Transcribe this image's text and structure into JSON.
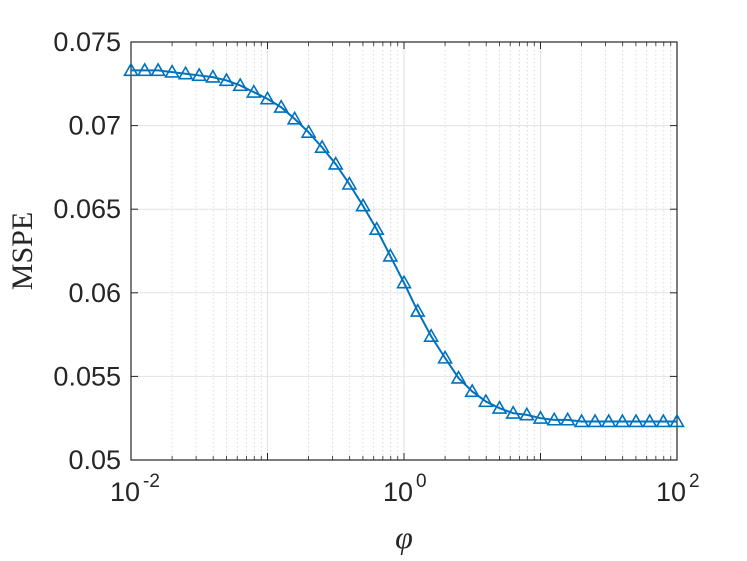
{
  "chart_data": {
    "type": "line",
    "title": "",
    "xlabel": "φ",
    "ylabel": "MSPE",
    "x_scale": "log",
    "xlim": [
      0.01,
      100
    ],
    "ylim": [
      0.05,
      0.075
    ],
    "x_ticks": [
      {
        "value": 0.01,
        "base": "10",
        "exp": "-2"
      },
      {
        "value": 1,
        "base": "10",
        "exp": "0"
      },
      {
        "value": 100,
        "base": "10",
        "exp": "2"
      }
    ],
    "y_ticks": [
      {
        "value": 0.05,
        "label": "0.05"
      },
      {
        "value": 0.055,
        "label": "0.055"
      },
      {
        "value": 0.06,
        "label": "0.06"
      },
      {
        "value": 0.065,
        "label": "0.065"
      },
      {
        "value": 0.07,
        "label": "0.07"
      },
      {
        "value": 0.075,
        "label": "0.075"
      }
    ],
    "grid": true,
    "marker": "triangle",
    "color": "#0072BD",
    "series": [
      {
        "x": [
          0.01,
          0.0126,
          0.0158,
          0.02,
          0.0251,
          0.0316,
          0.0398,
          0.0501,
          0.0631,
          0.0794,
          0.1,
          0.126,
          0.158,
          0.2,
          0.251,
          0.316,
          0.398,
          0.501,
          0.631,
          0.794,
          1,
          1.26,
          1.58,
          2,
          2.51,
          3.16,
          3.98,
          5.01,
          6.31,
          7.94,
          10,
          12.6,
          15.8,
          20,
          25.1,
          31.6,
          39.8,
          50.1,
          63.1,
          79.4,
          100
        ],
        "values": [
          0.0733,
          0.0733,
          0.0733,
          0.0732,
          0.0731,
          0.073,
          0.0729,
          0.0727,
          0.0724,
          0.072,
          0.0716,
          0.0711,
          0.0704,
          0.0696,
          0.0687,
          0.0677,
          0.0665,
          0.0652,
          0.0638,
          0.0622,
          0.0606,
          0.0589,
          0.0574,
          0.0561,
          0.0549,
          0.0541,
          0.0535,
          0.0531,
          0.0528,
          0.0527,
          0.0525,
          0.0524,
          0.0524,
          0.0523,
          0.0523,
          0.0523,
          0.0523,
          0.0523,
          0.0523,
          0.0523,
          0.0523
        ]
      }
    ]
  }
}
